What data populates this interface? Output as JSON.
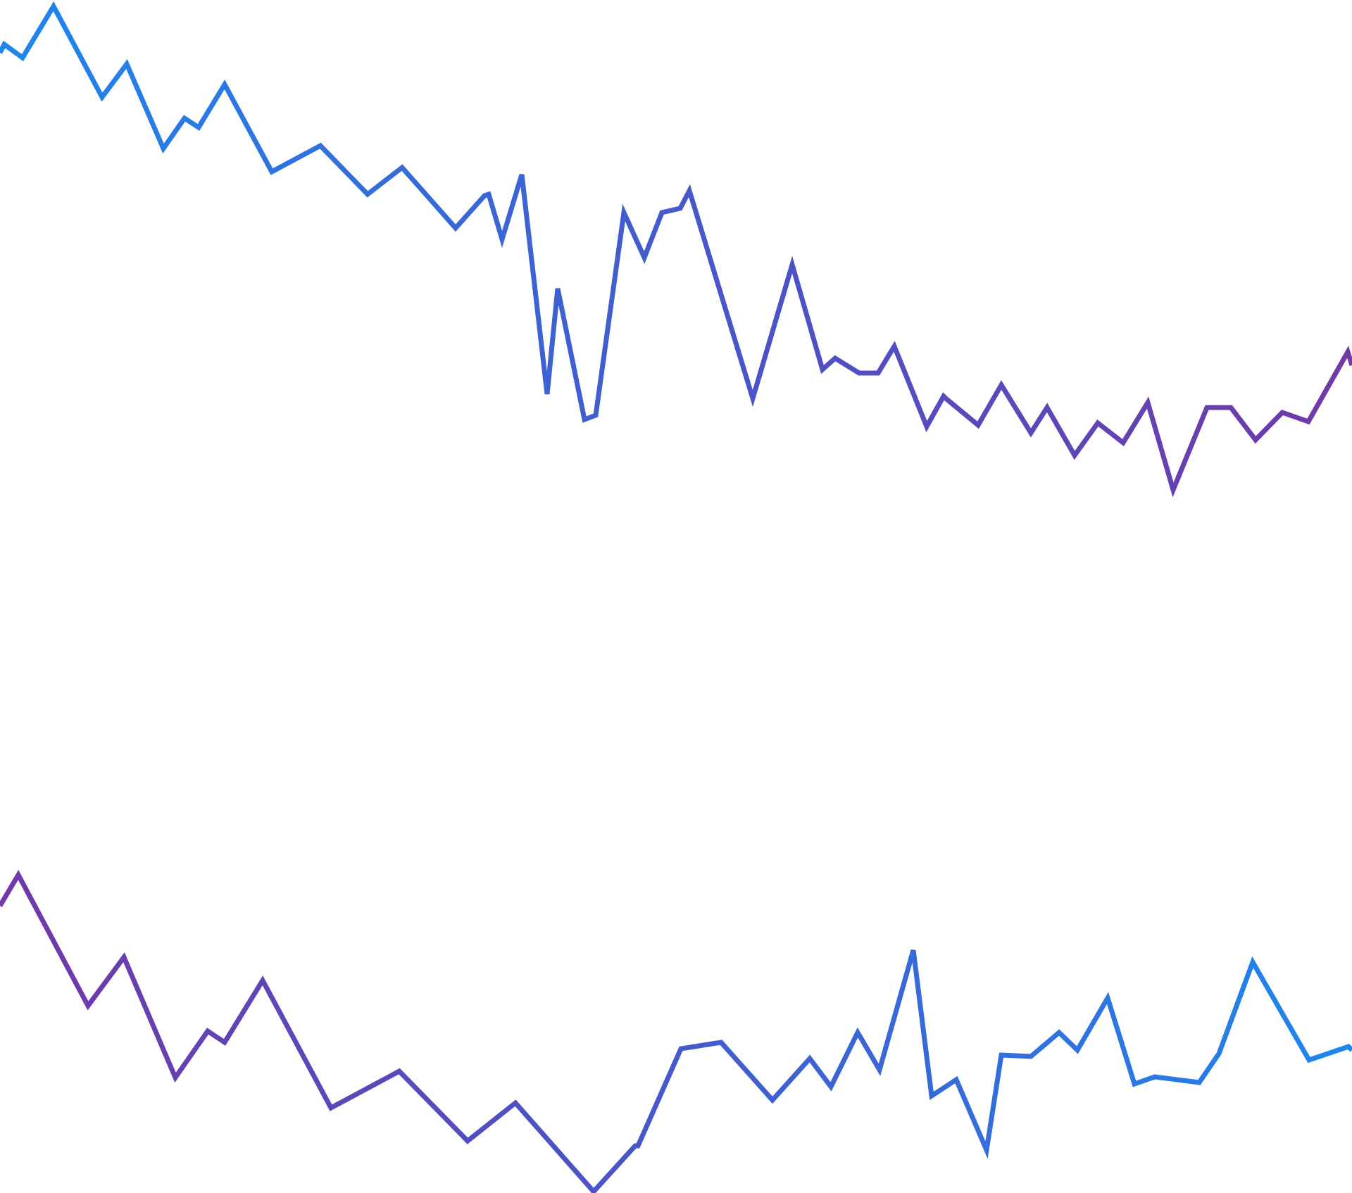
{
  "colors": {
    "background": "#ffffff",
    "blue": "#1f86ee",
    "indigo": "#4955c9",
    "purple": "#7238a8"
  }
}
